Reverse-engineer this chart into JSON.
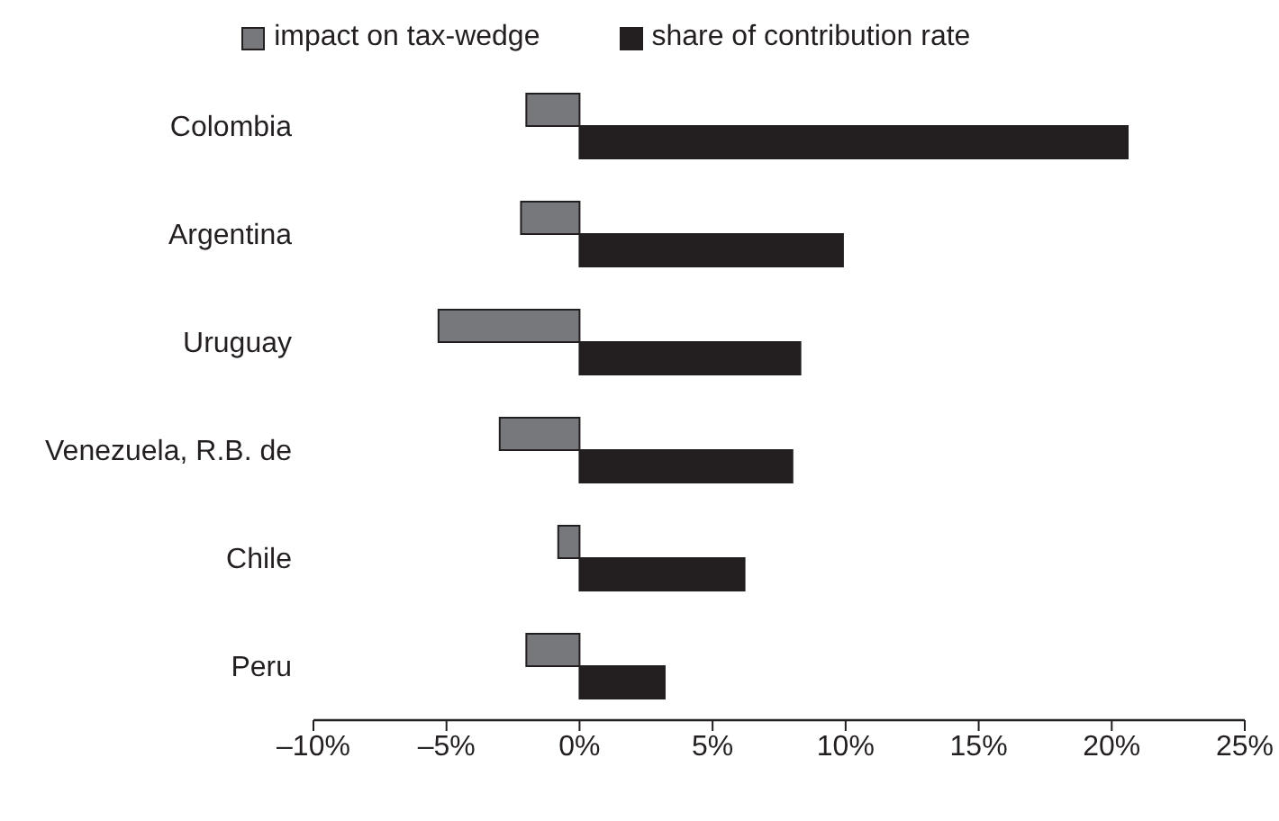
{
  "chart_data": {
    "type": "bar",
    "orientation": "horizontal",
    "categories": [
      "Colombia",
      "Argentina",
      "Uruguay",
      "Venezuela, R.B. de",
      "Chile",
      "Peru"
    ],
    "series": [
      {
        "name": "impact on tax-wedge",
        "color": "#77787b",
        "values": [
          -2.0,
          -2.2,
          -5.3,
          -3.0,
          -0.8,
          -2.0
        ]
      },
      {
        "name": "share of contribution rate",
        "color": "#231f20",
        "values": [
          20.6,
          9.9,
          8.3,
          8.0,
          6.2,
          3.2
        ]
      }
    ],
    "xlim": [
      -10,
      25
    ],
    "xticks": [
      {
        "value": -10,
        "label": "–10%"
      },
      {
        "value": -5,
        "label": "–5%"
      },
      {
        "value": 0,
        "label": "0%"
      },
      {
        "value": 5,
        "label": "5%"
      },
      {
        "value": 10,
        "label": "10%"
      },
      {
        "value": 15,
        "label": "15%"
      },
      {
        "value": 20,
        "label": "20%"
      },
      {
        "value": 25,
        "label": "25%"
      }
    ],
    "grid": false,
    "legend": "top"
  }
}
